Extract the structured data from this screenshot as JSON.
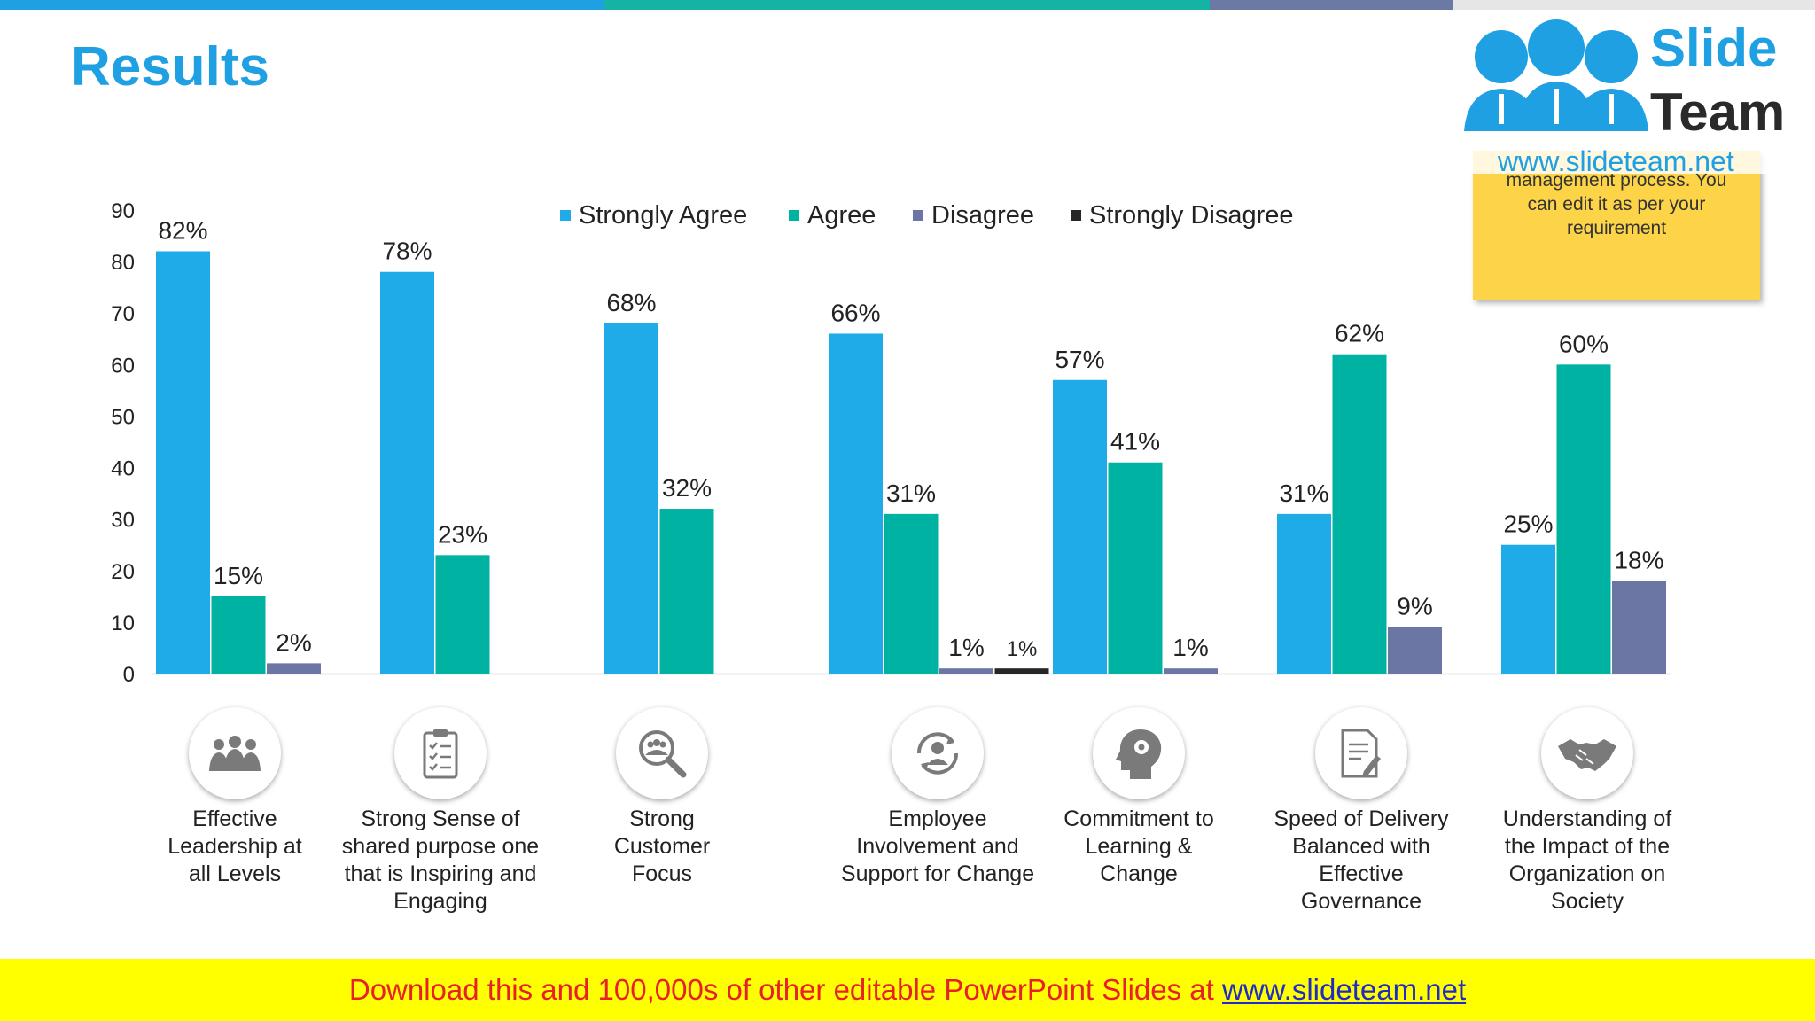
{
  "header": {
    "title": "Results",
    "bar_colors": [
      "#1fa0e3",
      "#14b3a4",
      "#6b7aa5",
      "#e6e6e6"
    ]
  },
  "chart_data": {
    "type": "bar",
    "title": "",
    "xlabel": "",
    "ylabel": "",
    "ylim": [
      0,
      90
    ],
    "yticks": [
      0,
      10,
      20,
      30,
      40,
      50,
      60,
      70,
      80,
      90
    ],
    "grid": false,
    "legend_position": "top",
    "categories": [
      "Effective Leadership at all Levels",
      "Strong Sense of shared purpose one that is Inspiring and Engaging",
      "Strong Customer Focus",
      "Employee Involvement and Support for Change",
      "Commitment to Learning & Change",
      "Speed of Delivery Balanced with Effective Governance",
      "Understanding of the Impact of the Organization on Society"
    ],
    "series": [
      {
        "name": "Strongly Agree",
        "color": "#1eabe8",
        "values": [
          82,
          78,
          68,
          66,
          57,
          31,
          25
        ],
        "labels": [
          "82%",
          "78%",
          "68%",
          "66%",
          "57%",
          "31%",
          "25%"
        ]
      },
      {
        "name": "Agree",
        "color": "#00b2a2",
        "values": [
          15,
          23,
          32,
          31,
          41,
          62,
          60
        ],
        "labels": [
          "15%",
          "23%",
          "32%",
          "31%",
          "41%",
          "62%",
          "60%"
        ]
      },
      {
        "name": "Disagree",
        "color": "#6b76a4",
        "values": [
          2,
          null,
          null,
          1,
          1,
          9,
          18
        ],
        "labels": [
          "2%",
          null,
          null,
          "1%",
          "1%",
          "9%",
          "18%"
        ]
      },
      {
        "name": "Strongly Disagree",
        "color": "#262626",
        "values": [
          null,
          null,
          null,
          1,
          null,
          null,
          null
        ],
        "labels": [
          null,
          null,
          null,
          "1%",
          null,
          null,
          null
        ]
      }
    ]
  },
  "categories_ui": [
    {
      "icon": "leadership-team-icon",
      "label_lines": [
        "Effective",
        "Leadership at",
        "all Levels"
      ]
    },
    {
      "icon": "clipboard-checklist-icon",
      "label_lines": [
        "Strong Sense of",
        "shared purpose one",
        "that is Inspiring and",
        "Engaging"
      ]
    },
    {
      "icon": "magnifier-people-icon",
      "label_lines": [
        "Strong",
        "Customer",
        "Focus"
      ]
    },
    {
      "icon": "person-cycle-icon",
      "label_lines": [
        "Employee",
        "Involvement and",
        "Support for Change"
      ]
    },
    {
      "icon": "head-gears-icon",
      "label_lines": [
        "Commitment to",
        "Learning &",
        "Change"
      ]
    },
    {
      "icon": "document-pen-icon",
      "label_lines": [
        "Speed of Delivery",
        "Balanced with",
        "Effective",
        "Governance"
      ]
    },
    {
      "icon": "handshake-icon",
      "label_lines": [
        "Understanding of",
        "the Impact of the",
        "Organization on",
        "Society"
      ]
    }
  ],
  "note": {
    "lines": [
      "management process. You",
      "can edit it as per your",
      "requirement"
    ]
  },
  "logo": {
    "word1": "Slide",
    "word2": "Team",
    "url": "www.slideteam.net"
  },
  "footer": {
    "text": "Download this and 100,000s of other editable PowerPoint Slides at ",
    "link": "www.slideteam.net"
  }
}
